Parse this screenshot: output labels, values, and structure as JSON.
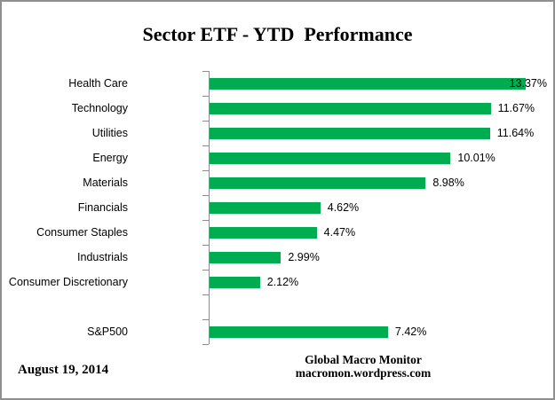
{
  "chart_data": {
    "type": "bar",
    "orientation": "horizontal",
    "title": "Sector ETF - YTD  Performance",
    "categories": [
      "Health Care",
      "Technology",
      "Utilities",
      "Energy",
      "Materials",
      "Financials",
      "Consumer Staples",
      "Industrials",
      "Consumer Discretionary",
      "",
      "S&P500"
    ],
    "values": [
      13.37,
      11.67,
      11.64,
      10.01,
      8.98,
      4.62,
      4.47,
      2.99,
      2.12,
      null,
      7.42
    ],
    "value_labels": [
      "13.37%",
      "11.67%",
      "11.64%",
      "10.01%",
      "8.98%",
      "4.62%",
      "4.47%",
      "2.99%",
      "2.12%",
      "",
      "7.42%"
    ],
    "xlim": [
      0,
      14
    ],
    "bar_color": "#00ac50",
    "axis_color": "#8c8c8c",
    "grid": false,
    "legend": false,
    "data_labels": true
  },
  "footer": {
    "date": "August 19, 2014",
    "credit_line1": "Global Macro Monitor",
    "credit_line2": "macromon.wordpress.com"
  }
}
